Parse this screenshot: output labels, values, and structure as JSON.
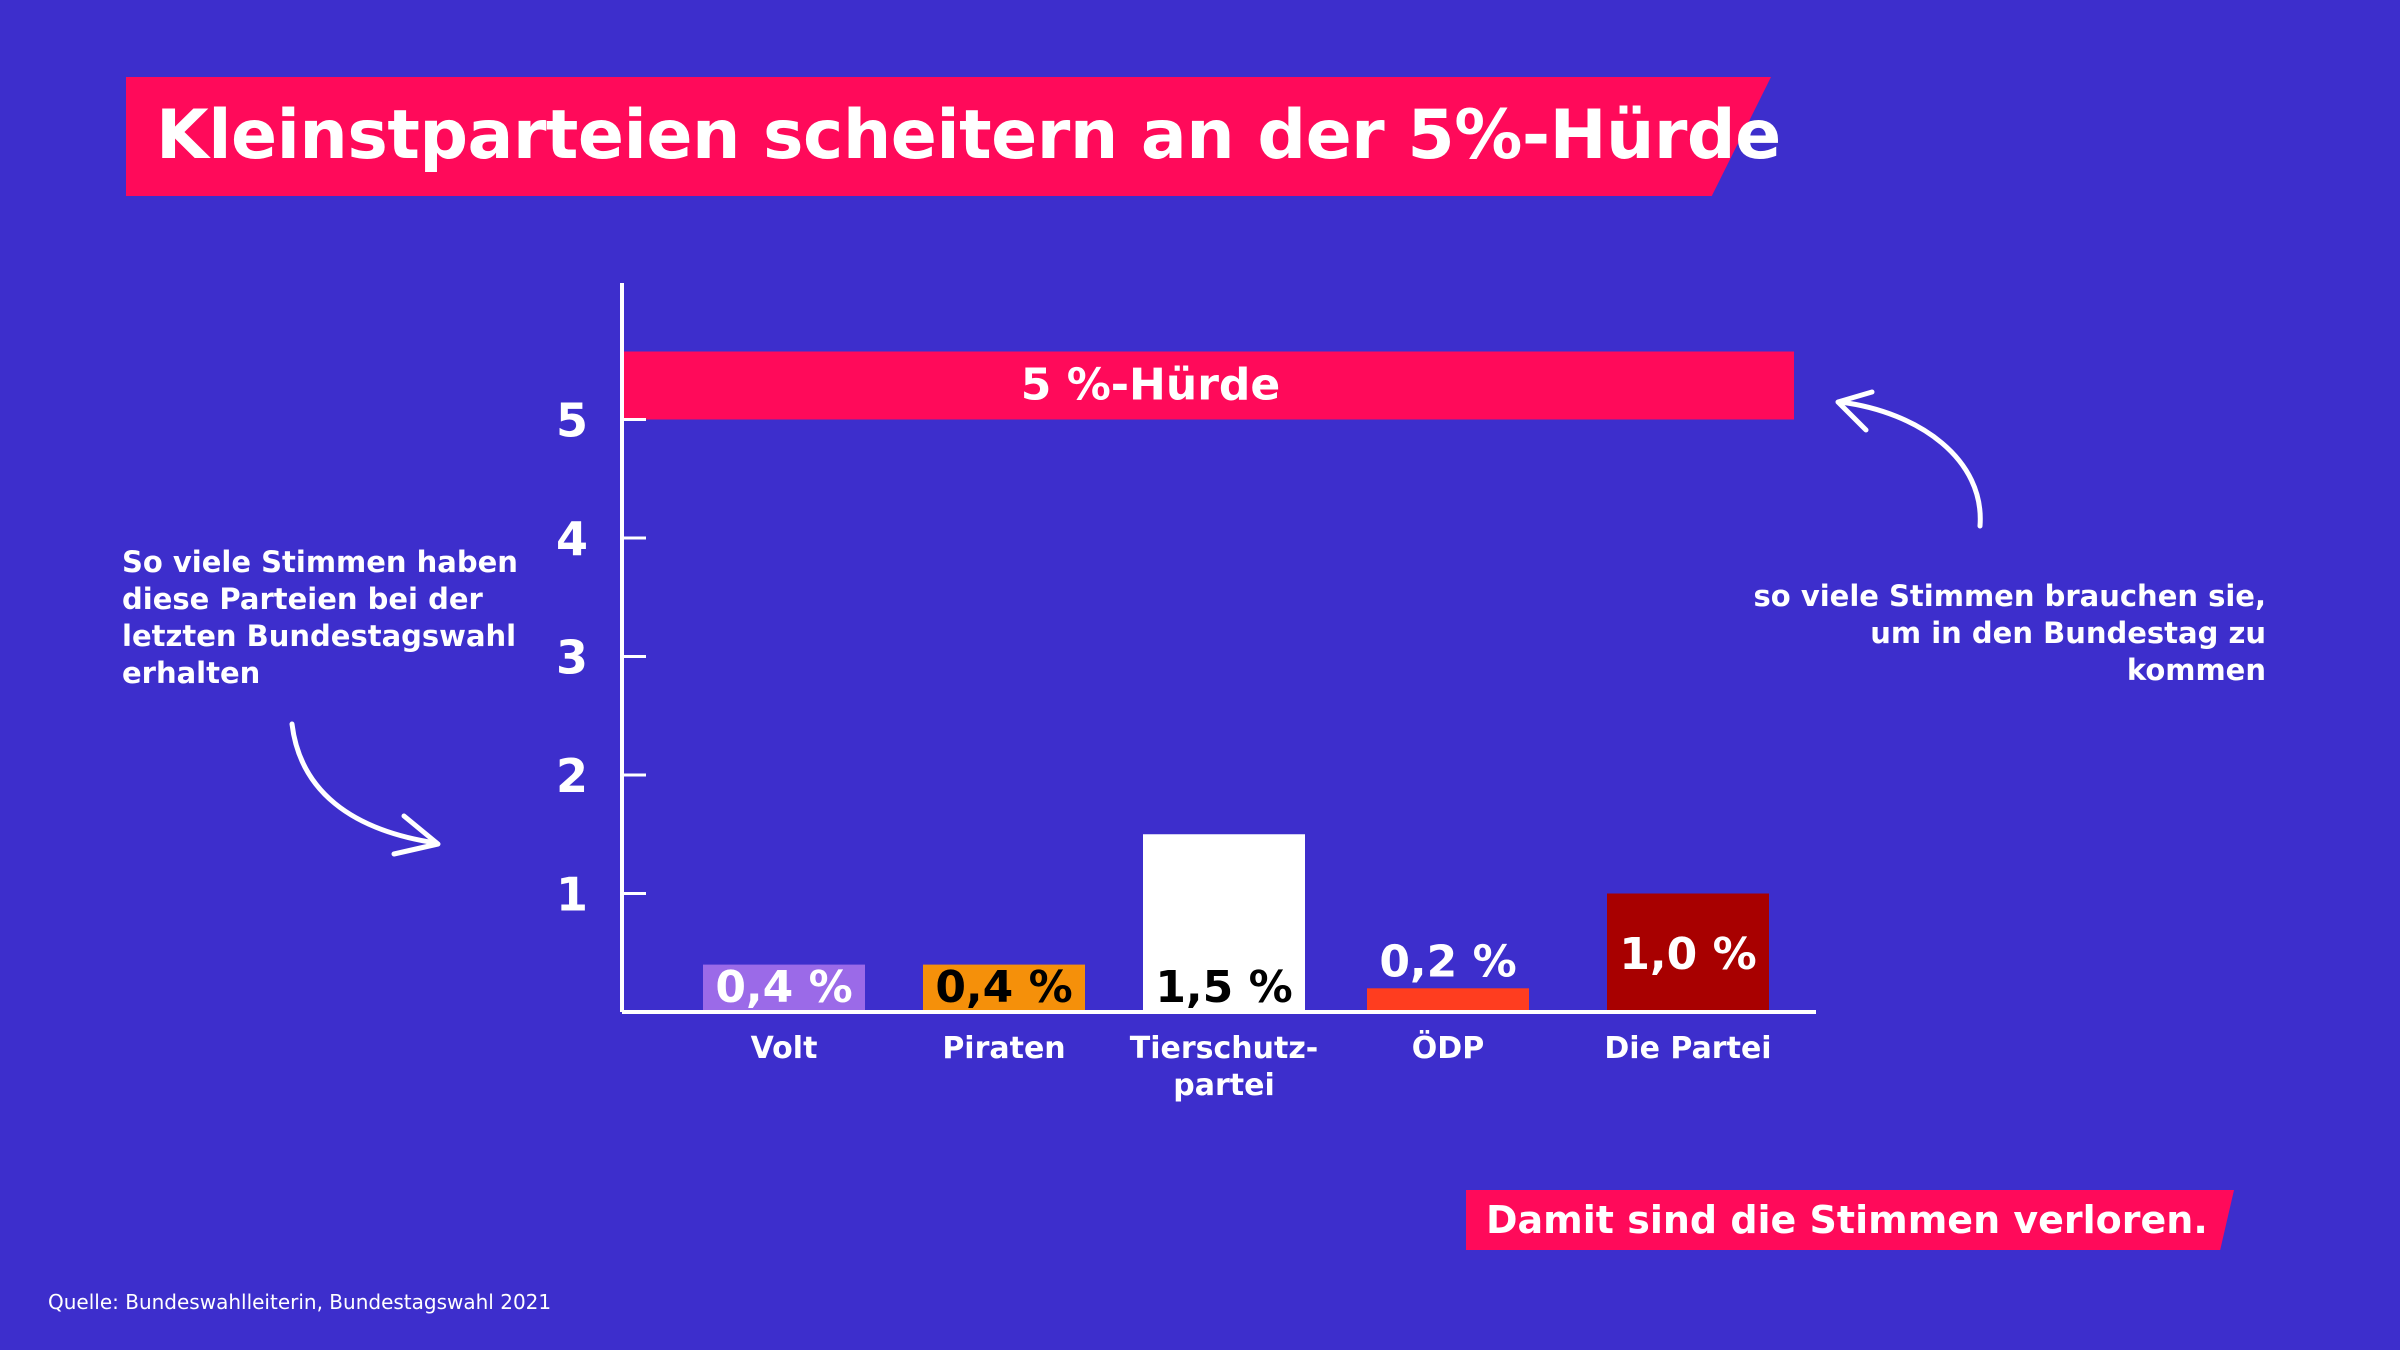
{
  "title": "Kleinstparteien scheitern an der 5%-Hürde",
  "note_left": "So viele Stimmen haben diese Parteien bei der letzten Bundestagswahl erhalten",
  "note_right": "so viele Stimmen brauchen sie, um in den Bundestag zu kommen",
  "bottom_note": "Damit sind die Stimmen verloren.",
  "source": "Quelle: Bundeswahlleiterin, Bundestagswahl 2021",
  "chart_data": {
    "type": "bar",
    "ylim": [
      0,
      6
    ],
    "yticks": [
      "1",
      "2",
      "3",
      "4",
      "5"
    ],
    "threshold": {
      "value": 5,
      "label": "5 %-Hürde",
      "color": "#ff0a5a"
    },
    "categories": [
      "Volt",
      "Piraten",
      "Tierschutz-partei",
      "ÖDP",
      "Die Partei"
    ],
    "category_lines": [
      [
        "Volt"
      ],
      [
        "Piraten"
      ],
      [
        "Tierschutz-",
        "partei"
      ],
      [
        "ÖDP"
      ],
      [
        "Die Partei"
      ]
    ],
    "values": [
      0.4,
      0.4,
      1.5,
      0.2,
      1.0
    ],
    "value_labels": [
      "0,4 %",
      "0,4 %",
      "1,5 %",
      "0,2 %",
      "1,0 %"
    ],
    "colors": [
      "#9b6ae8",
      "#f5900a",
      "#ffffff",
      "#ff3d1f",
      "#a80000"
    ],
    "label_colors": [
      "#ffffff",
      "#000000",
      "#000000",
      "#ffffff",
      "#ffffff"
    ]
  }
}
